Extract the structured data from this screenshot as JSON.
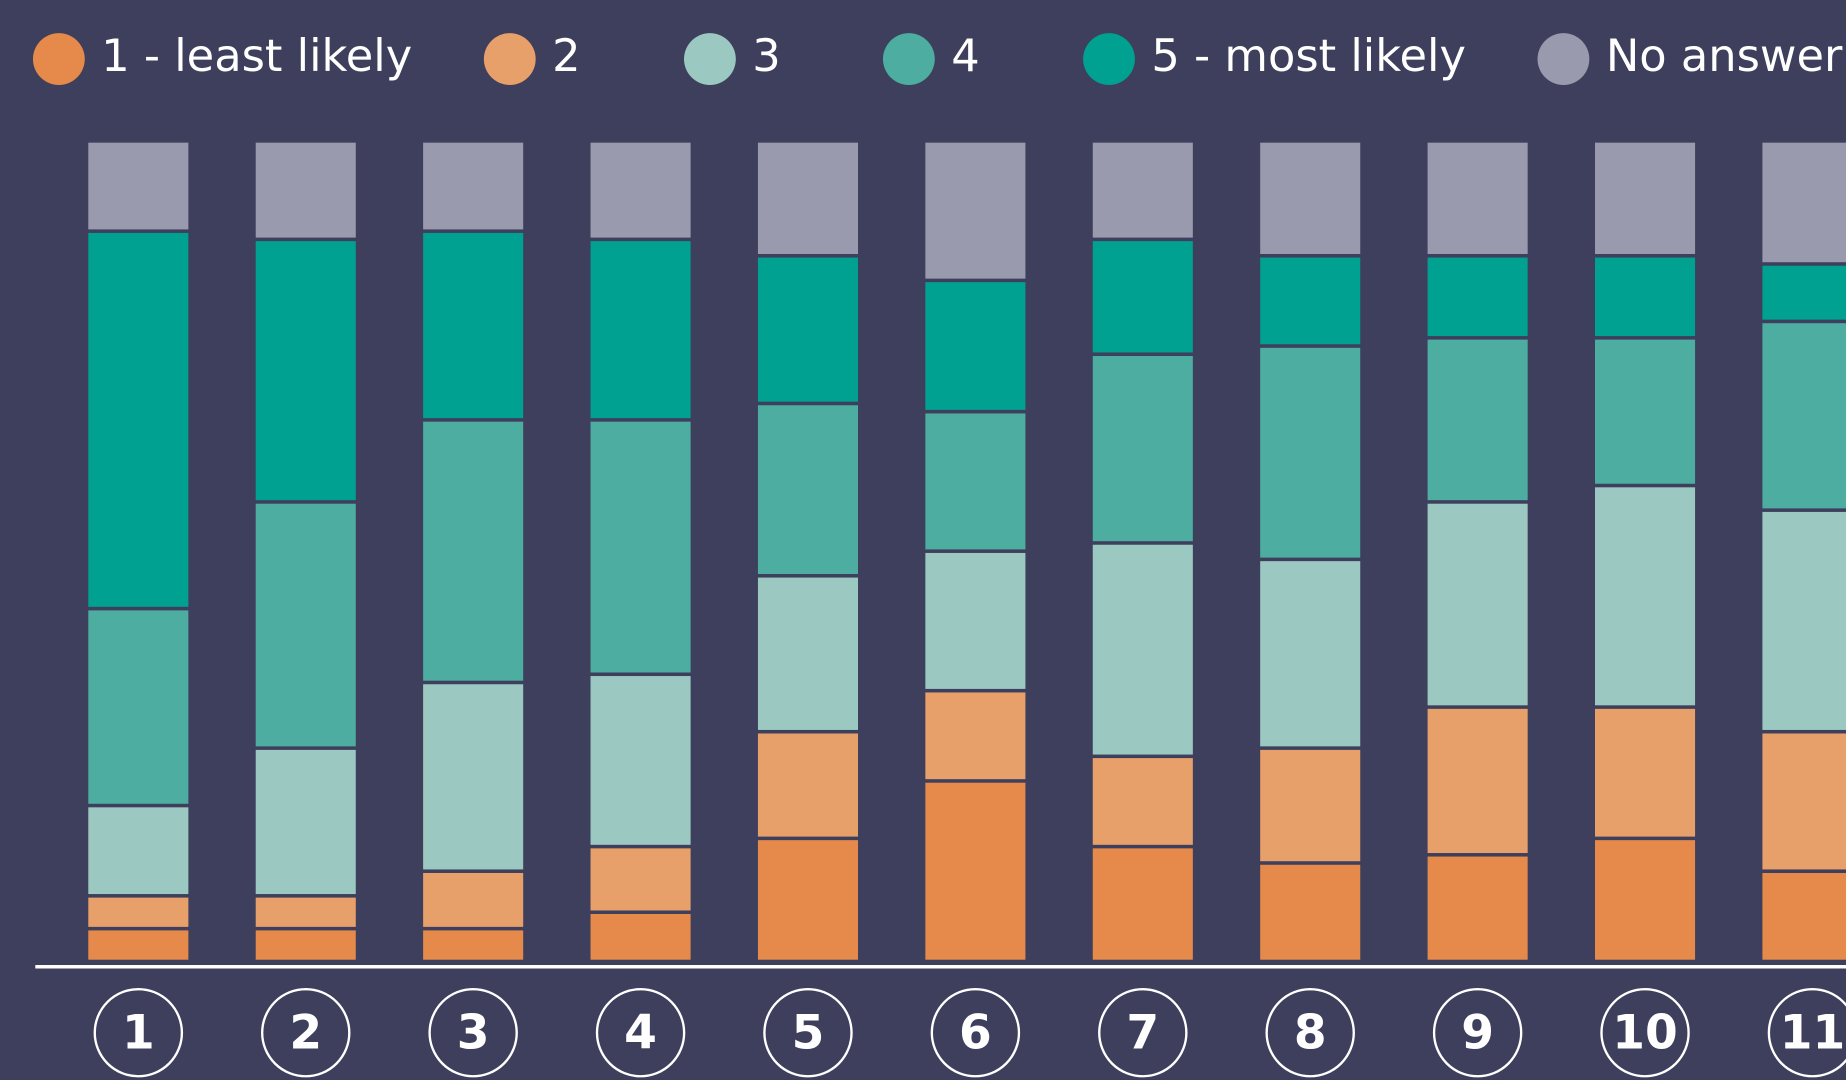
{
  "chart_data": {
    "type": "stacked_bar",
    "categories": [
      "1",
      "2",
      "3",
      "4",
      "5",
      "6",
      "7",
      "8",
      "9",
      "10",
      "11"
    ],
    "series": [
      {
        "name": "1 - least likely",
        "color": "#e58a4a",
        "values": [
          4,
          4,
          4,
          6,
          15,
          22,
          14,
          12,
          13,
          15,
          11
        ]
      },
      {
        "name": "2",
        "color": "#e8a06a",
        "values": [
          4,
          4,
          7,
          8,
          13,
          11,
          11,
          14,
          18,
          16,
          17
        ]
      },
      {
        "name": "3",
        "color": "#9cc8c2",
        "values": [
          11,
          18,
          23,
          21,
          19,
          17,
          26,
          23,
          25,
          27,
          27
        ]
      },
      {
        "name": "4",
        "color": "#4dada0",
        "values": [
          24,
          30,
          32,
          31,
          21,
          17,
          23,
          26,
          20,
          18,
          23
        ]
      },
      {
        "name": "5 - most likely",
        "color": "#00a190",
        "values": [
          46,
          32,
          23,
          22,
          18,
          16,
          14,
          11,
          10,
          10,
          7
        ]
      },
      {
        "name": "No answer",
        "color": "#9a9aae",
        "values": [
          11,
          12,
          11,
          12,
          14,
          17,
          12,
          14,
          14,
          14,
          15
        ]
      }
    ],
    "ylim": [
      0,
      100
    ]
  }
}
